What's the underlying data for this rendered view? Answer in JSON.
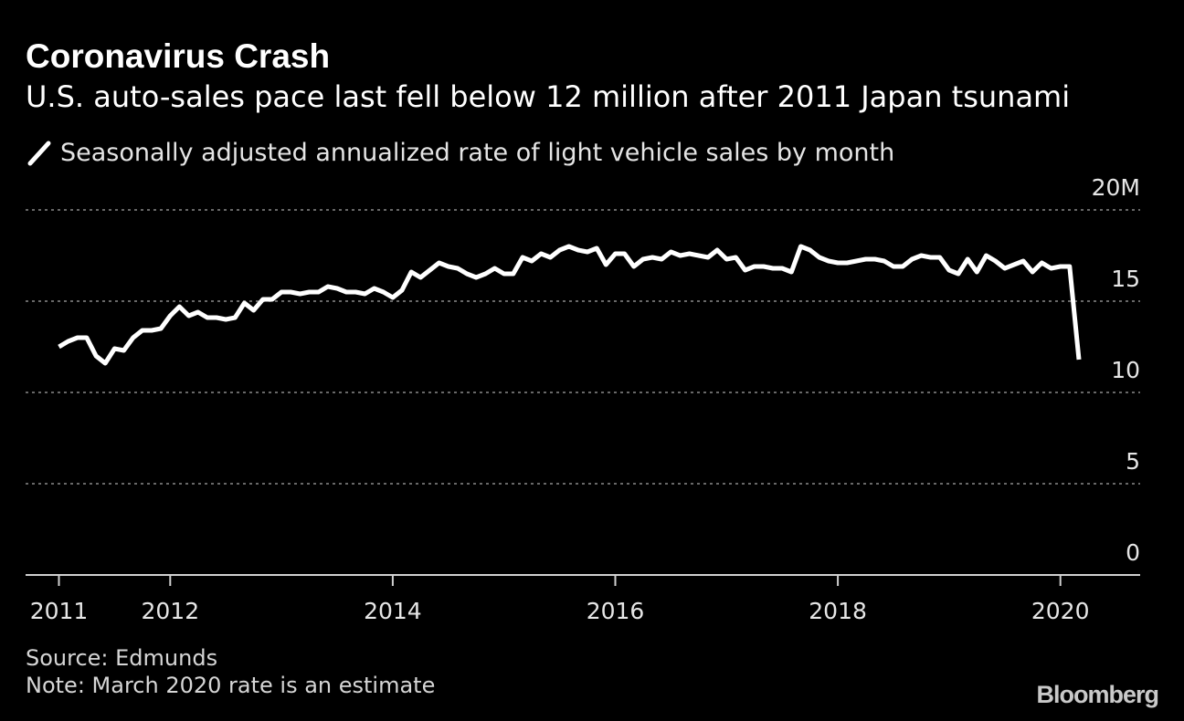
{
  "title": "Coronavirus Crash",
  "subtitle": "U.S. auto-sales pace last fell below 12 million after 2011 Japan tsunami",
  "colors": {
    "background": "#000000",
    "line": "#ffffff",
    "grid": "#8a8a8a",
    "text": "#ffffff"
  },
  "chart_data": {
    "type": "line",
    "title": "Coronavirus Crash",
    "subtitle": "U.S. auto-sales pace last fell below 12 million after 2011 Japan tsunami",
    "series": [
      {
        "name": "Seasonally adjusted annualized rate of light vehicle sales by month",
        "x_start": 2011.0,
        "x_step_years": 0.0833333,
        "values_millions": [
          12.5,
          12.8,
          13.0,
          13.0,
          12.0,
          11.6,
          12.4,
          12.3,
          13.0,
          13.4,
          13.4,
          13.5,
          14.2,
          14.7,
          14.2,
          14.4,
          14.1,
          14.1,
          14.0,
          14.1,
          14.9,
          14.5,
          15.1,
          15.1,
          15.5,
          15.5,
          15.4,
          15.5,
          15.5,
          15.8,
          15.7,
          15.5,
          15.5,
          15.4,
          15.7,
          15.5,
          15.2,
          15.6,
          16.6,
          16.3,
          16.7,
          17.1,
          16.9,
          16.8,
          16.5,
          16.3,
          16.5,
          16.8,
          16.5,
          16.5,
          17.4,
          17.2,
          17.6,
          17.4,
          17.8,
          18.0,
          17.8,
          17.7,
          17.9,
          17.0,
          17.6,
          17.6,
          16.9,
          17.3,
          17.4,
          17.3,
          17.7,
          17.5,
          17.6,
          17.5,
          17.4,
          17.8,
          17.3,
          17.4,
          16.7,
          16.9,
          16.9,
          16.8,
          16.8,
          16.6,
          18.0,
          17.8,
          17.4,
          17.2,
          17.1,
          17.1,
          17.2,
          17.3,
          17.3,
          17.2,
          16.9,
          16.9,
          17.3,
          17.5,
          17.4,
          17.4,
          16.7,
          16.5,
          17.3,
          16.6,
          17.5,
          17.2,
          16.8,
          17.0,
          17.2,
          16.6,
          17.1,
          16.8,
          16.9,
          16.9,
          11.8
        ]
      }
    ],
    "xlim": [
      2010.7,
      2020.75
    ],
    "ylim": [
      0,
      20
    ],
    "yticks": [
      0,
      5,
      10,
      15,
      20
    ],
    "ytick_labels": [
      "0",
      "5",
      "10",
      "15",
      "20M"
    ],
    "xticks": [
      2011,
      2012,
      2014,
      2016,
      2018,
      2020
    ],
    "xtick_labels": [
      "2011",
      "2012",
      "2014",
      "2016",
      "2018",
      "2020"
    ],
    "grid": "horizontal dotted",
    "legend": "top-left",
    "ylabel": "",
    "xlabel": ""
  },
  "legend_label": "Seasonally adjusted annualized rate of light vehicle sales by month",
  "source": "Source: Edmunds",
  "note": "Note: March 2020 rate is an estimate",
  "brand": "Bloomberg",
  "legend_icon": "diagonal-line-icon"
}
